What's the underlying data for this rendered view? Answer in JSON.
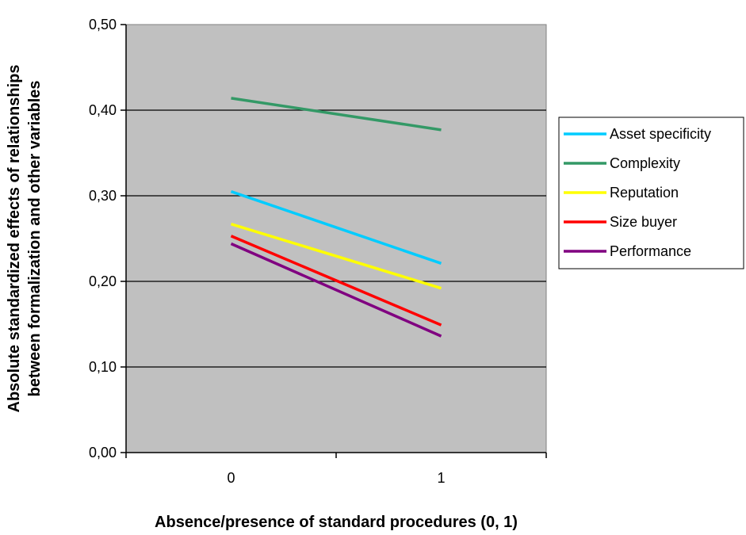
{
  "chart_data": {
    "type": "line",
    "categories": [
      "0",
      "1"
    ],
    "xlabel": "Absence/presence of standard procedures (0, 1)",
    "ylabel_lines": [
      "Absolute standardized effects of relationships",
      "between formalization and other variables"
    ],
    "ylim": [
      0,
      0.5
    ],
    "yticks": [
      "0,00",
      "0,10",
      "0,20",
      "0,30",
      "0,40",
      "0,50"
    ],
    "grid": "horizontal",
    "plot_background": "#c0c0c0",
    "legend_position": "right",
    "series": [
      {
        "name": "Asset specificity",
        "color": "#00ccff",
        "values": [
          0.305,
          0.221
        ]
      },
      {
        "name": "Complexity",
        "color": "#339966",
        "values": [
          0.414,
          0.377
        ]
      },
      {
        "name": "Reputation",
        "color": "#ffff00",
        "values": [
          0.267,
          0.192
        ]
      },
      {
        "name": "Size buyer",
        "color": "#ff0000",
        "values": [
          0.253,
          0.149
        ]
      },
      {
        "name": "Performance",
        "color": "#800080",
        "values": [
          0.244,
          0.136
        ]
      }
    ]
  }
}
